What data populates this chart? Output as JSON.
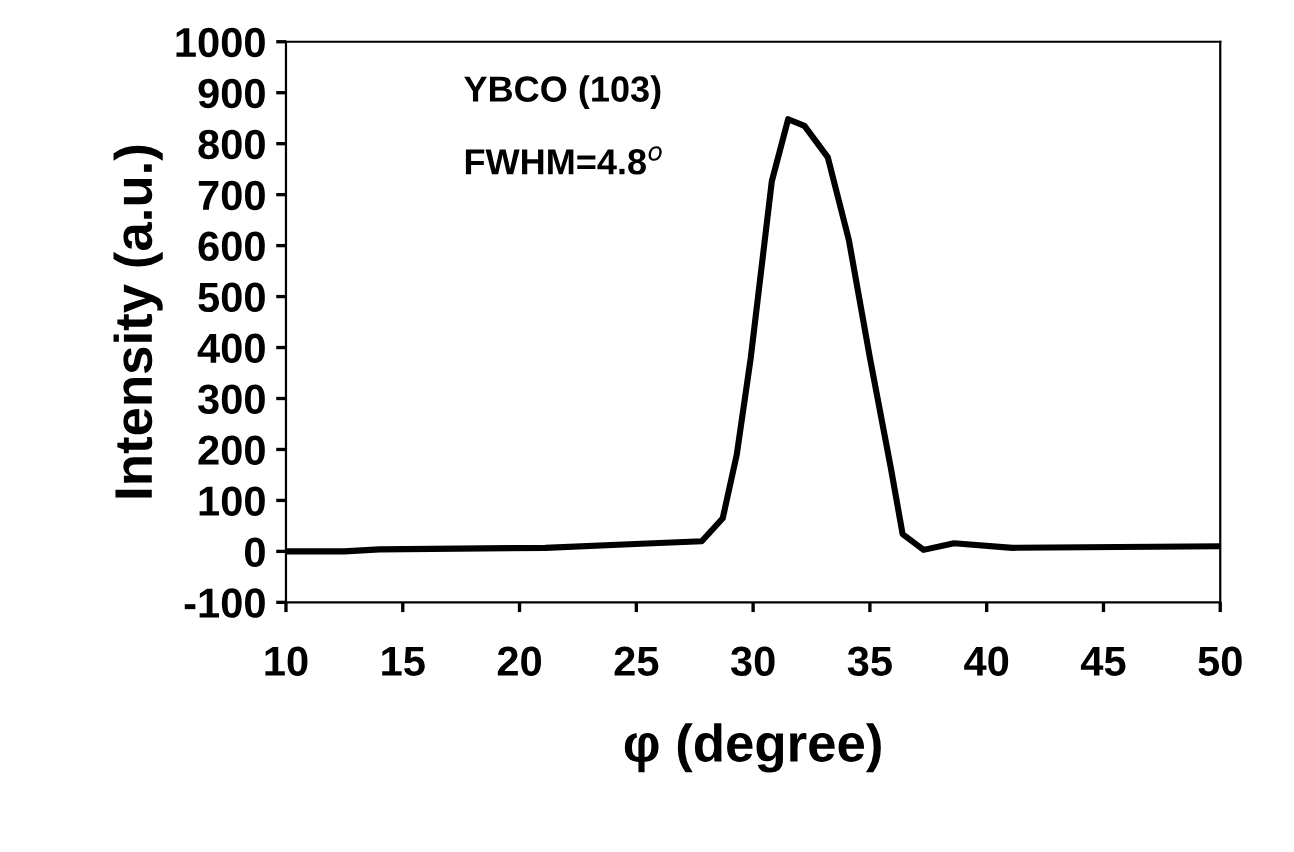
{
  "chart_data": {
    "type": "line",
    "xlabel": "φ (degree)",
    "ylabel": "Intensity (a.u.)",
    "annotations": [
      "YBCO (103)",
      "FWHM=4.8$^{o}$"
    ],
    "x": [
      10,
      12.5,
      14,
      21.1,
      25.2,
      27.8,
      28.7,
      29.3,
      29.9,
      30.8,
      31.5,
      32.2,
      33.2,
      34.1,
      35.0,
      35.9,
      36.4,
      37.3,
      38.6,
      41.1,
      50
    ],
    "series": [
      {
        "color": "#000000",
        "values": [
          0,
          0,
          4,
          7,
          15,
          20,
          65,
          190,
          380,
          726,
          848,
          835,
          773,
          611,
          380,
          163,
          34,
          3,
          16,
          7,
          10
        ]
      }
    ],
    "xlim": [
      10,
      50
    ],
    "xticks": [
      10,
      15,
      20,
      25,
      30,
      35,
      40,
      45,
      50
    ],
    "ylim": [
      -100,
      1000
    ],
    "yticks": [
      -100,
      0,
      100,
      200,
      300,
      400,
      500,
      600,
      700,
      800,
      900,
      1000
    ],
    "grid": false,
    "legend": false,
    "marker": "none",
    "line_style": "solid"
  }
}
